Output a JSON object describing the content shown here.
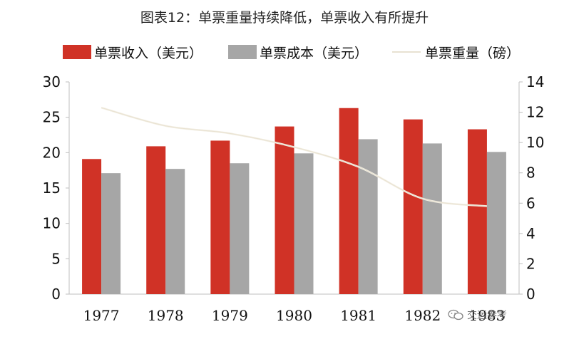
{
  "chart_data": {
    "type": "bar",
    "title": "图表12：单票重量持续降低，单票收入有所提升",
    "categories": [
      "1977",
      "1978",
      "1979",
      "1980",
      "1981",
      "1982",
      "1983"
    ],
    "series": [
      {
        "name": "单票收入（美元）",
        "axis": "left",
        "kind": "bar",
        "color": "#d03226",
        "values": [
          19.1,
          20.9,
          21.7,
          23.7,
          26.3,
          24.7,
          23.3
        ]
      },
      {
        "name": "单票成本（美元）",
        "axis": "left",
        "kind": "bar",
        "color": "#a6a6a6",
        "values": [
          17.1,
          17.7,
          18.5,
          19.9,
          21.9,
          21.3,
          20.1
        ]
      },
      {
        "name": "单票重量（磅）",
        "axis": "right",
        "kind": "line",
        "color": "#f2eee3",
        "values": [
          12.3,
          11.1,
          10.6,
          9.7,
          8.4,
          6.3,
          5.8
        ]
      }
    ],
    "ylim_left": [
      0,
      30
    ],
    "yticks_left": [
      "0",
      "5",
      "10",
      "15",
      "20",
      "25",
      "30"
    ],
    "ylim_right": [
      0,
      14
    ],
    "yticks_right": [
      "0",
      "2",
      "4",
      "6",
      "8",
      "10",
      "12",
      "14"
    ],
    "grid": false,
    "legend_position": "top"
  },
  "watermark": "交运参考"
}
